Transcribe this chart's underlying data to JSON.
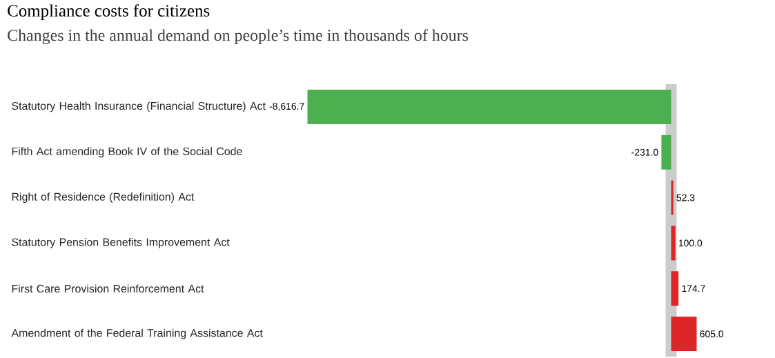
{
  "chart_data": {
    "type": "bar",
    "orientation": "horizontal",
    "title": "Compliance costs for citizens",
    "subtitle": "Changes in the annual demand on people’s time in thousands of hours",
    "categories": [
      "Statutory Health Insurance (Financial Structure) Act",
      "Fifth Act amending Book IV of the Social Code",
      "Right of Residence (Redefinition) Act",
      "Statutory Pension Benefits Improvement Act",
      "First Care Provision Reinforcement Act",
      "Amendment of the Federal Training Assistance Act"
    ],
    "values": [
      -8616.7,
      -231.0,
      52.3,
      100.0,
      174.7,
      605.0
    ],
    "colors": [
      "#4caf50",
      "#4caf50",
      "#dc2628",
      "#dc2628",
      "#dc2628",
      "#dc2628"
    ],
    "value_labels": [
      "-8,616.7",
      "-231.0",
      "52.3",
      "100.0",
      "174.7",
      "605.0"
    ]
  }
}
